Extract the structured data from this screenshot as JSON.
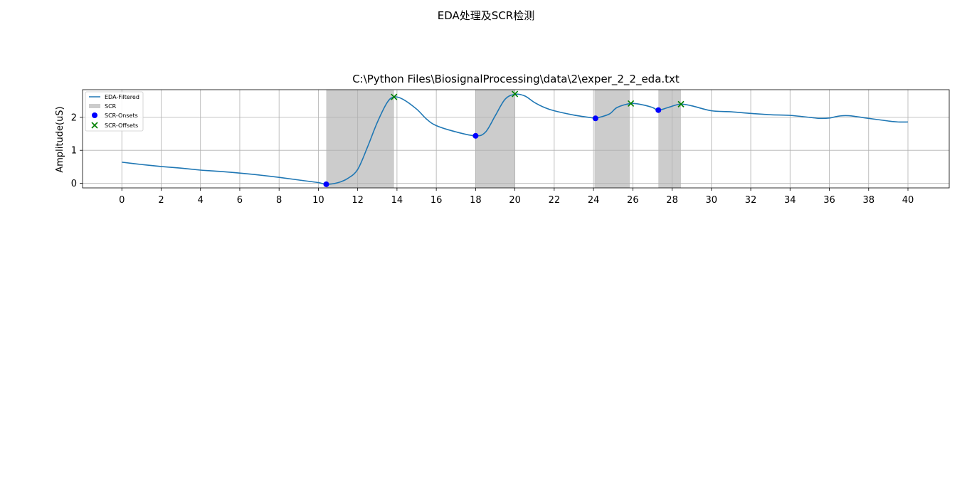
{
  "figure": {
    "suptitle": "EDA处理及SCR检测"
  },
  "chart_data": {
    "type": "line",
    "title": "C:\\Python Files\\BiosignalProcessing\\data\\2\\exper_2_2_eda.txt",
    "xlabel": "",
    "ylabel": "Amplitude(uS)",
    "xlim": [
      -2,
      42.1
    ],
    "ylim": [
      -0.14,
      2.84
    ],
    "xticks": [
      0,
      2,
      4,
      6,
      8,
      10,
      12,
      14,
      16,
      18,
      20,
      22,
      24,
      26,
      28,
      30,
      32,
      34,
      36,
      38,
      40
    ],
    "yticks": [
      0,
      1,
      2
    ],
    "grid": true,
    "legend_position": "top-left",
    "legend": [
      "EDA-Filtered",
      "SCR",
      "SCR-Onsets",
      "SCR-Offsets"
    ],
    "colors": {
      "line": "#1f77b4",
      "scr_fill": "#cccccc",
      "onsets": "#0000ff",
      "offsets": "#008000",
      "grid": "#b0b0b0"
    },
    "series": [
      {
        "name": "EDA-Filtered",
        "x": [
          0,
          1,
          2,
          3,
          4,
          4.5,
          5,
          6,
          7,
          8,
          9,
          10,
          10.4,
          11,
          11.5,
          12,
          12.5,
          13,
          13.5,
          13.85,
          14.3,
          15,
          15.5,
          16,
          17,
          18,
          18.5,
          19,
          19.5,
          20,
          20.5,
          21,
          21.5,
          22,
          23,
          24,
          24.1,
          24.8,
          25.2,
          25.9,
          26.5,
          27,
          27.3,
          27.8,
          28.4,
          29,
          30,
          31,
          32,
          33,
          34,
          35,
          35.5,
          36,
          36.5,
          37,
          38,
          39,
          39.5,
          40
        ],
        "y": [
          0.64,
          0.57,
          0.51,
          0.46,
          0.4,
          0.38,
          0.36,
          0.31,
          0.25,
          0.18,
          0.1,
          0.02,
          -0.03,
          0.02,
          0.15,
          0.42,
          1.1,
          1.85,
          2.45,
          2.62,
          2.55,
          2.25,
          1.95,
          1.75,
          1.56,
          1.44,
          1.55,
          2.05,
          2.55,
          2.7,
          2.65,
          2.45,
          2.3,
          2.2,
          2.07,
          1.98,
          1.97,
          2.1,
          2.3,
          2.42,
          2.38,
          2.3,
          2.22,
          2.3,
          2.4,
          2.35,
          2.2,
          2.17,
          2.12,
          2.08,
          2.06,
          2.0,
          1.97,
          1.98,
          2.04,
          2.05,
          1.97,
          1.89,
          1.86,
          1.86
        ]
      }
    ],
    "scr_regions": [
      [
        10.4,
        13.85
      ],
      [
        18.0,
        20.0
      ],
      [
        24.05,
        25.85
      ],
      [
        27.3,
        28.45
      ]
    ],
    "onsets": {
      "x": [
        10.4,
        18.0,
        24.1,
        27.3
      ],
      "y": [
        -0.03,
        1.44,
        1.97,
        2.22
      ]
    },
    "offsets": {
      "x": [
        13.85,
        20.0,
        25.9,
        28.45
      ],
      "y": [
        2.62,
        2.71,
        2.42,
        2.4
      ]
    }
  }
}
